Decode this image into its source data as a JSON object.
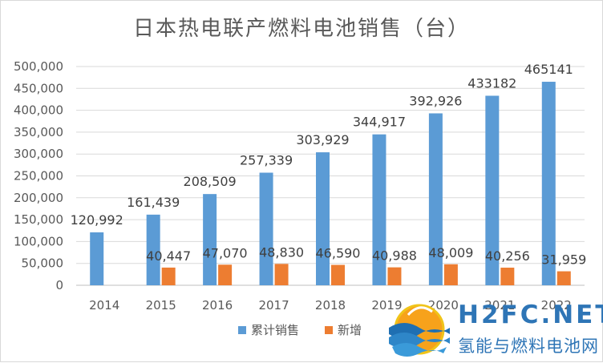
{
  "chart_data": {
    "type": "bar",
    "title": "日本热电联产燃料电池销售（台）",
    "xlabel": "",
    "ylabel": "",
    "categories": [
      "2014",
      "2015",
      "2016",
      "2017",
      "2018",
      "2019",
      "2020",
      "2021",
      "2022"
    ],
    "series": [
      {
        "name": "累计销售",
        "color": "#5b9bd5",
        "values": [
          120992,
          161439,
          208509,
          257339,
          303929,
          344917,
          392926,
          433182,
          465141
        ],
        "labels": [
          "120,992",
          "161,439",
          "208,509",
          "257,339",
          "303,929",
          "344,917",
          "392,926",
          "433182",
          "465141"
        ]
      },
      {
        "name": "新增",
        "color": "#ed7d31",
        "values": [
          null,
          40447,
          47070,
          48830,
          46590,
          40988,
          48009,
          40256,
          31959
        ],
        "labels": [
          "",
          "40,447",
          "47,070",
          "48,830",
          "46,590",
          "40,988",
          "48,009",
          "40,256",
          "31,959"
        ]
      }
    ],
    "ylim": [
      0,
      500000
    ],
    "yticks": [
      "0",
      "50,000",
      "100,000",
      "150,000",
      "200,000",
      "250,000",
      "300,000",
      "350,000",
      "400,000",
      "450,000",
      "500,000"
    ],
    "grid": true,
    "legend": "bottom"
  },
  "watermark": {
    "name": "H2FC.NET",
    "subtitle": "氢能与燃料电池网",
    "logo_icon": "wave-flame-logo"
  }
}
